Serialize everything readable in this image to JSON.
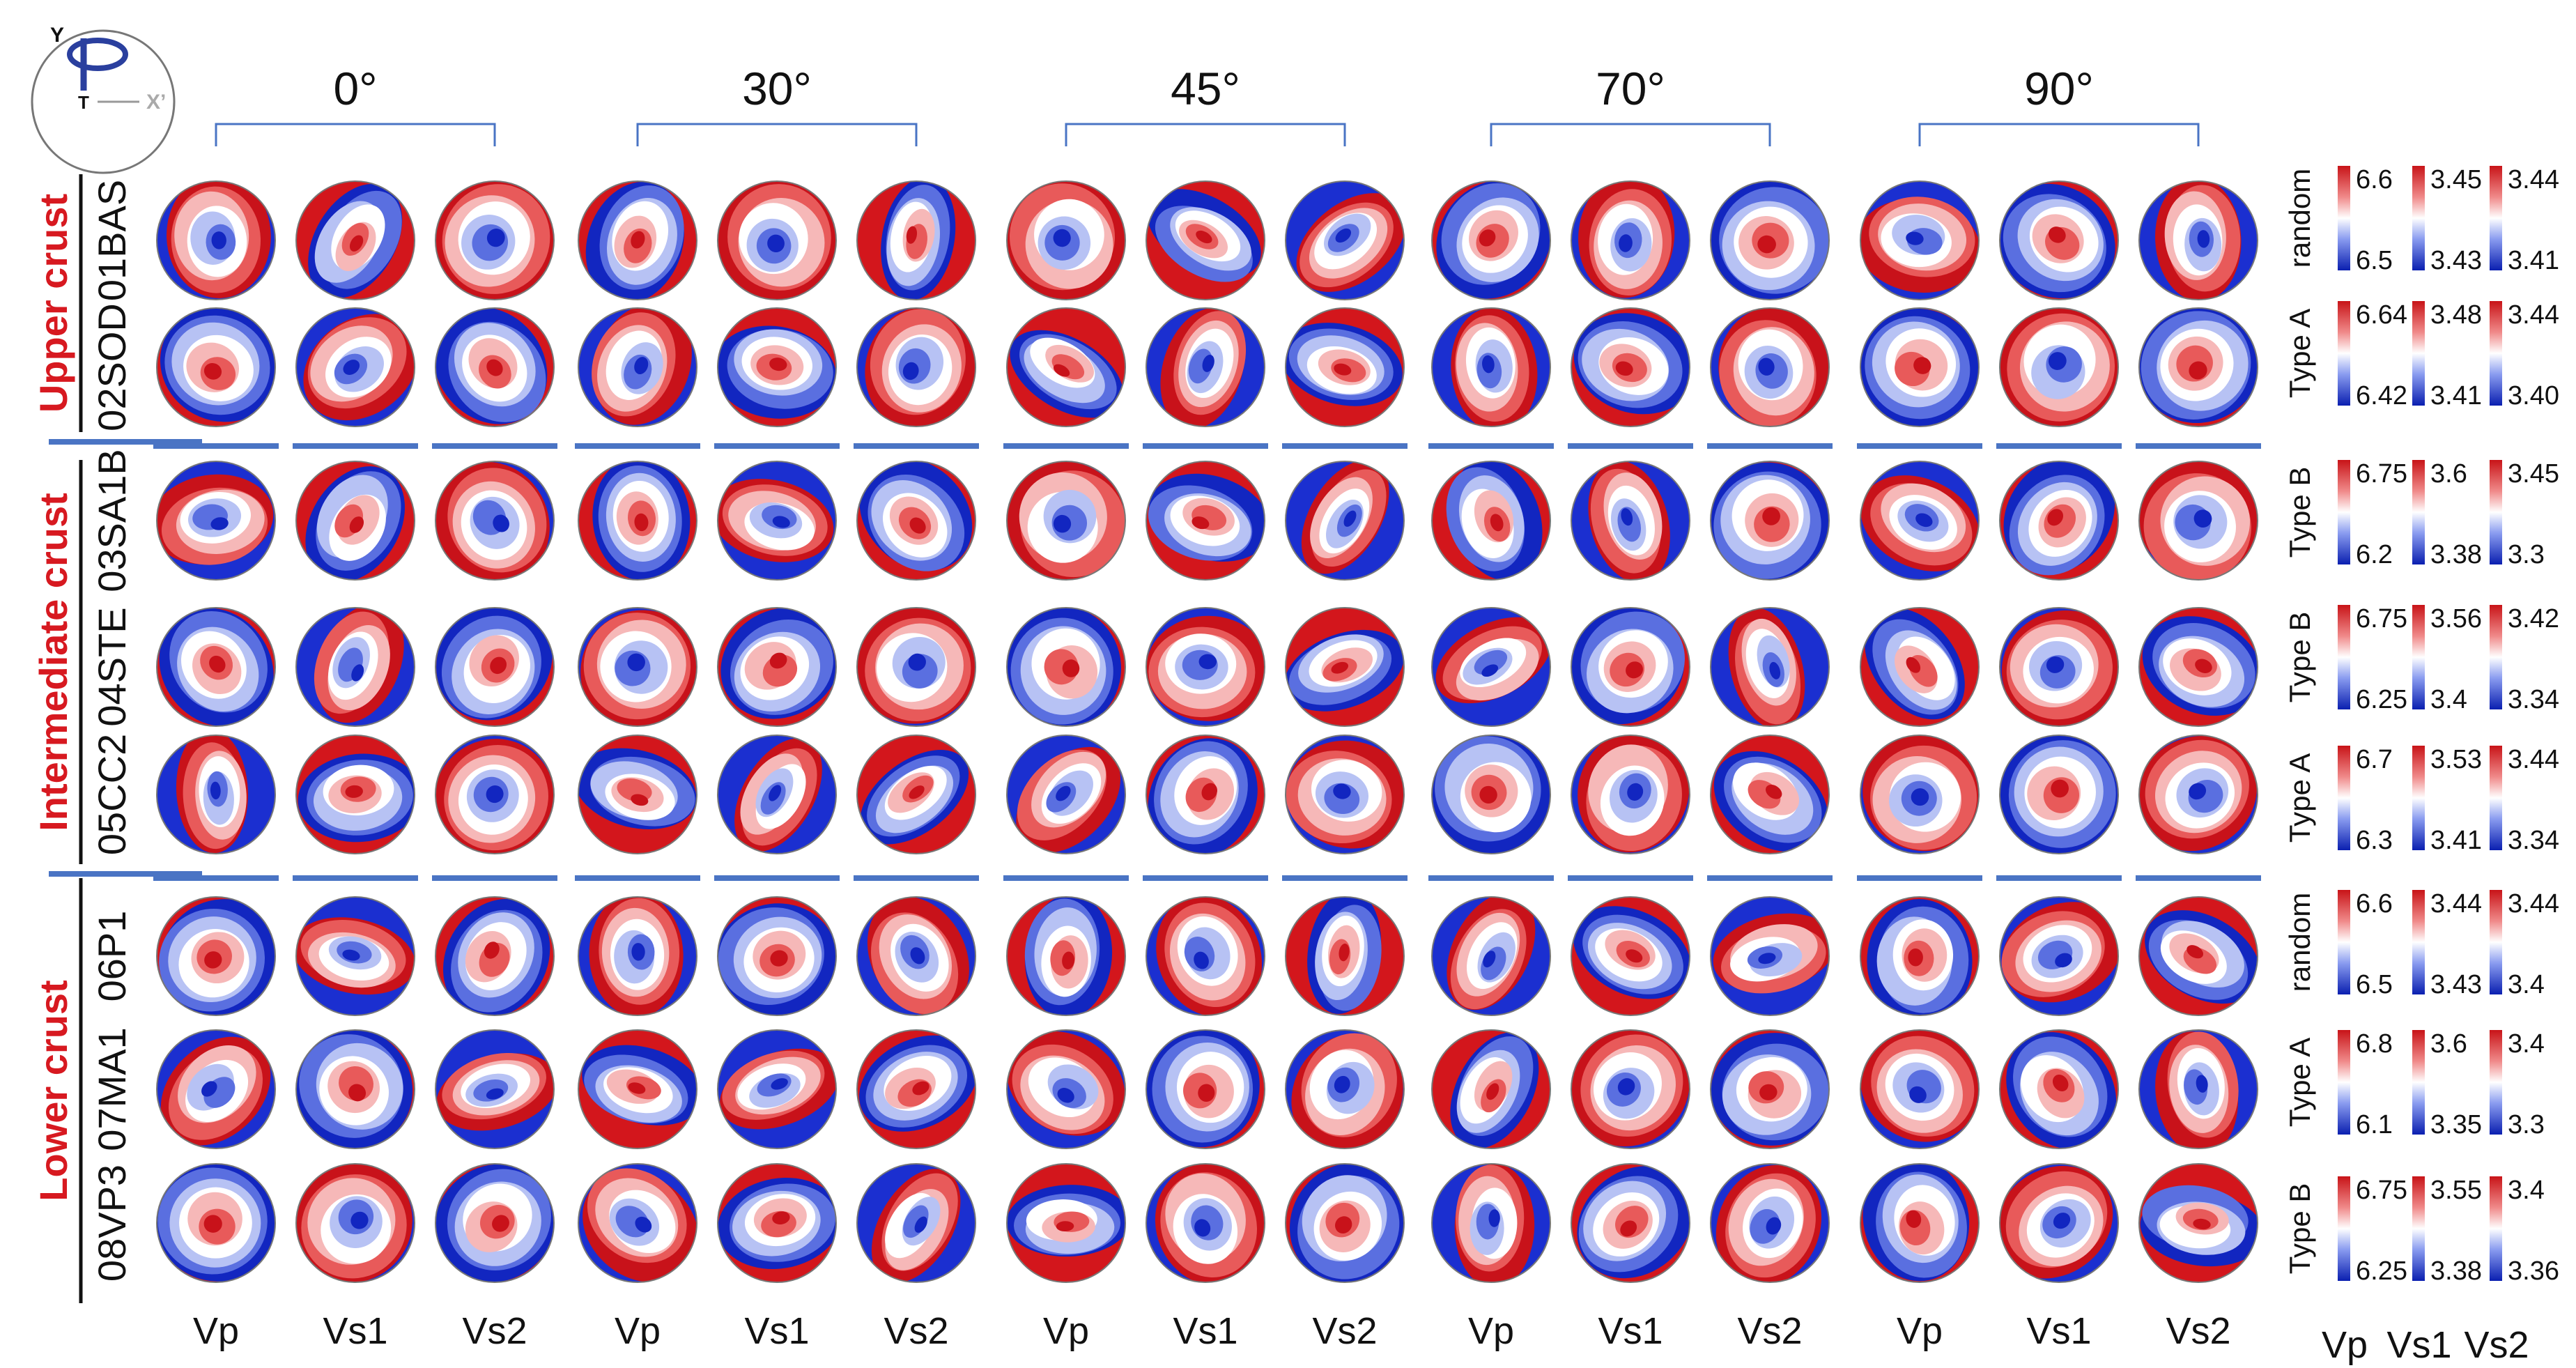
{
  "axis_icon": {
    "y": "Y",
    "t": "T",
    "x": "X’"
  },
  "angles": [
    "0°",
    "30°",
    "45°",
    "70°",
    "90°"
  ],
  "columns": [
    "Vp",
    "Vs1",
    "Vs2"
  ],
  "groups": [
    {
      "label": "Upper crust",
      "samples": [
        0,
        1
      ]
    },
    {
      "label": "Intermediate crust",
      "samples": [
        2,
        3,
        4
      ]
    },
    {
      "label": "Lower crust",
      "samples": [
        5,
        6,
        7
      ]
    }
  ],
  "samples": [
    {
      "name": "01BAS",
      "type": "random",
      "scales": [
        [
          "6.6",
          "6.5"
        ],
        [
          "3.45",
          "3.43"
        ],
        [
          "3.44",
          "3.41"
        ]
      ]
    },
    {
      "name": "02SOD",
      "type": "Type A",
      "scales": [
        [
          "6.64",
          "6.42"
        ],
        [
          "3.48",
          "3.41"
        ],
        [
          "3.44",
          "3.40"
        ]
      ]
    },
    {
      "name": "03SA1B",
      "type": "Type B",
      "scales": [
        [
          "6.75",
          "6.2"
        ],
        [
          "3.6",
          "3.38"
        ],
        [
          "3.45",
          "3.3"
        ]
      ]
    },
    {
      "name": "04STE",
      "type": "Type B",
      "scales": [
        [
          "6.75",
          "6.25"
        ],
        [
          "3.56",
          "3.4"
        ],
        [
          "3.42",
          "3.34"
        ]
      ]
    },
    {
      "name": "05CC2",
      "type": "Type A",
      "scales": [
        [
          "6.7",
          "6.3"
        ],
        [
          "3.53",
          "3.41"
        ],
        [
          "3.44",
          "3.34"
        ]
      ]
    },
    {
      "name": "06P1",
      "type": "random",
      "scales": [
        [
          "6.6",
          "6.5"
        ],
        [
          "3.44",
          "3.43"
        ],
        [
          "3.44",
          "3.4"
        ]
      ]
    },
    {
      "name": "07MA1",
      "type": "Type A",
      "scales": [
        [
          "6.8",
          "6.1"
        ],
        [
          "3.6",
          "3.35"
        ],
        [
          "3.4",
          "3.3"
        ]
      ]
    },
    {
      "name": "08VP3",
      "type": "Type B",
      "scales": [
        [
          "6.75",
          "6.25"
        ],
        [
          "3.55",
          "3.38"
        ],
        [
          "3.4",
          "3.36"
        ]
      ]
    }
  ],
  "colors": {
    "accent": "#d71920",
    "rule": "#4a74c4",
    "high": "#d7191c",
    "low": "#0a1fb0"
  }
}
